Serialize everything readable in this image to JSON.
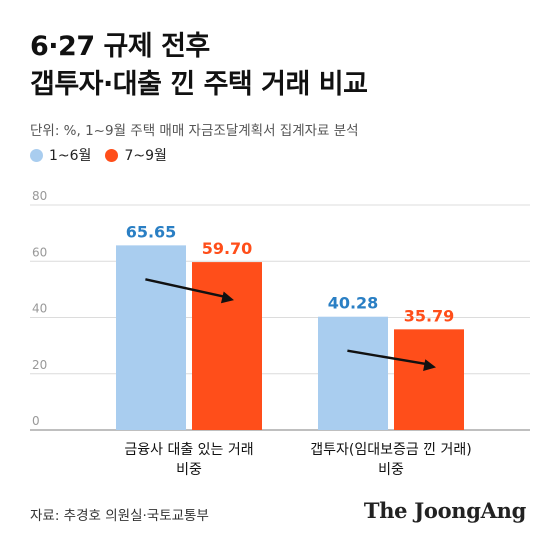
{
  "title_lines": [
    "6·27 규제 전후",
    "갭투자·대출 낀 주택 거래 비교"
  ],
  "subtitle": "단위: %, 1~9월 주택 매매 자금조달계획서 집계자료 분석",
  "source": "자료: 추경호 의원실·국토교통부",
  "logo": "The JoongAng",
  "colors": {
    "series1": "#a9cdef",
    "series2": "#ff4e1a",
    "value1_text": "#2a7fc4",
    "value2_text": "#ff4e1a"
  },
  "chart_data": {
    "type": "bar",
    "categories": [
      [
        "금융사 대출 있는 거래",
        "비중"
      ],
      [
        "갭투자(임대보증금 낀 거래)",
        "비중"
      ]
    ],
    "series": [
      {
        "name": "1~6월",
        "values": [
          65.65,
          40.28
        ],
        "labels": [
          "65.65",
          "40.28"
        ]
      },
      {
        "name": "7~9월",
        "values": [
          59.7,
          35.79
        ],
        "labels": [
          "59.70",
          "35.79"
        ]
      }
    ],
    "yticks": [
      "0",
      "20",
      "40",
      "60",
      "80"
    ],
    "ylim": [
      0,
      80
    ],
    "grid": true,
    "annotations": [
      "decrease-arrow",
      "decrease-arrow"
    ]
  }
}
